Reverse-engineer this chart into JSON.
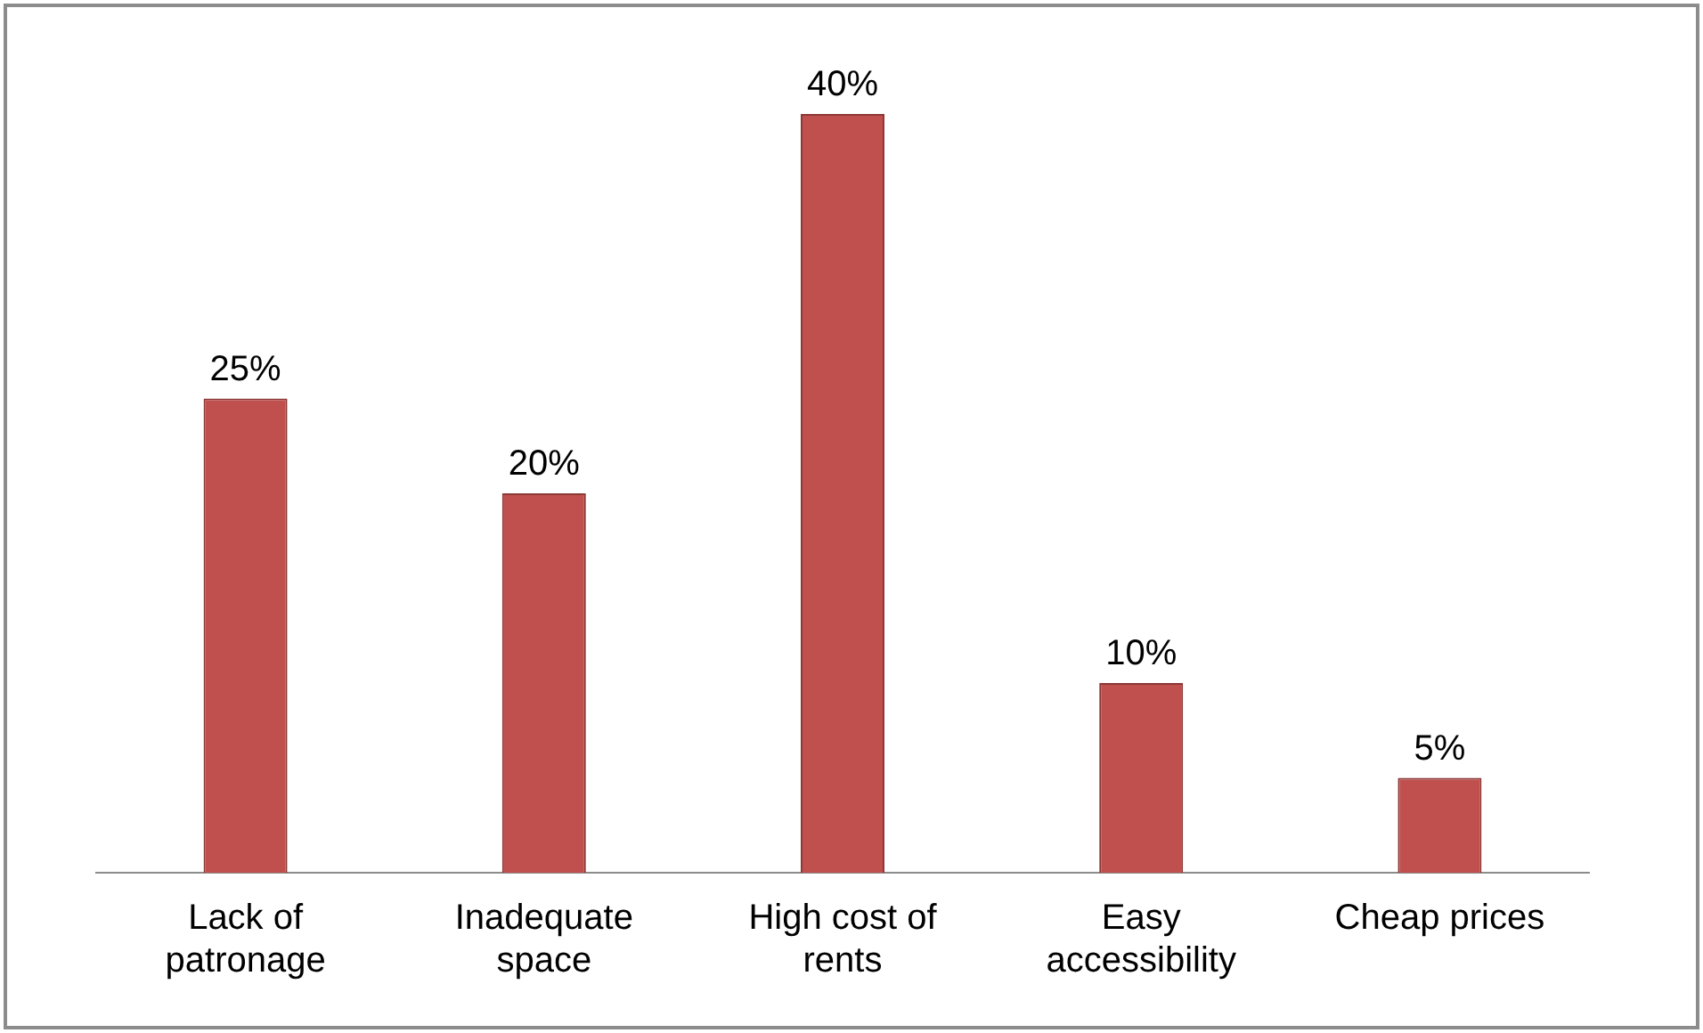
{
  "chart_data": {
    "type": "bar",
    "categories": [
      "Lack of patronage",
      "Inadequate space",
      "High cost of rents",
      "Easy accessibility",
      "Cheap prices"
    ],
    "values": [
      25,
      20,
      40,
      10,
      5
    ],
    "value_labels": [
      "25%",
      "20%",
      "40%",
      "10%",
      "5%"
    ],
    "color": "#c0504d",
    "grid": false,
    "legend": false
  }
}
